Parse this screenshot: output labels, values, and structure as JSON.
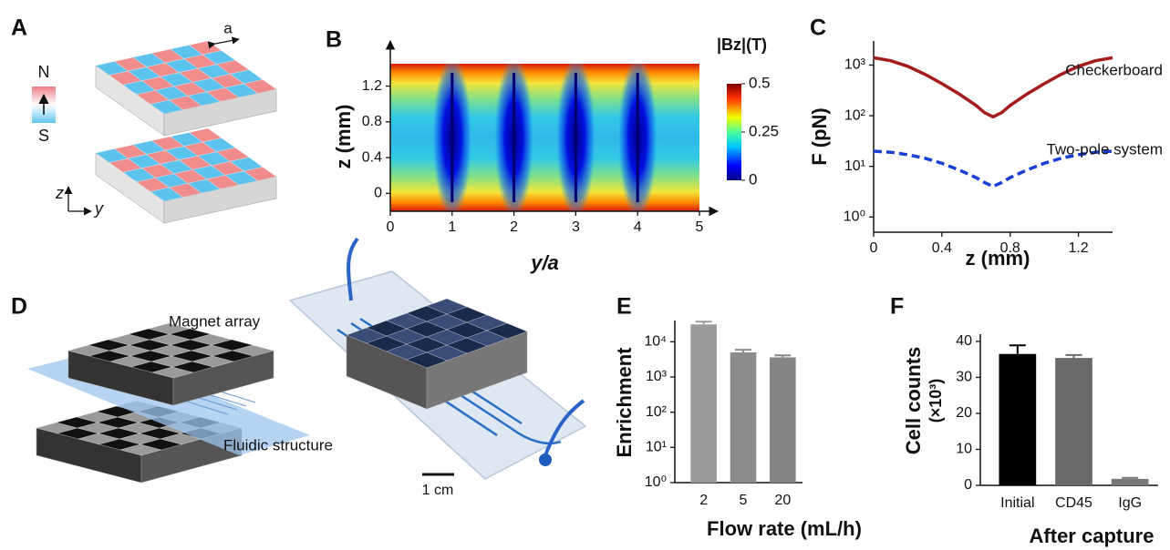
{
  "panel_labels": [
    "A",
    "B",
    "C",
    "D",
    "E",
    "F"
  ],
  "panel_a": {
    "spacing": "a",
    "north": "N",
    "south": "S",
    "z_axis": "z",
    "y_axis": "y"
  },
  "panel_d": {
    "magnet": "Magnet array",
    "fluidic": "Fluidic structure",
    "scale_bar": "1 cm"
  },
  "chart_data": [
    {
      "type": "heatmap",
      "xlabel": "y/a",
      "ylabel": "z (mm)",
      "xlim": [
        0,
        5
      ],
      "xticks": [
        0,
        1,
        2,
        3,
        4,
        5
      ],
      "ylim": [
        -0.2,
        1.45
      ],
      "yticks": [
        0,
        0.4,
        0.8,
        1.2
      ],
      "colorbar_title": "|Bz|(T)",
      "colorbar_lim": [
        0,
        0.5
      ],
      "colorbar_ticks": [
        0,
        0.25,
        0.5
      ]
    },
    {
      "type": "line",
      "xlabel": "z (mm)",
      "ylabel": "F (pN)",
      "log_y": true,
      "xlim": [
        0,
        1.4
      ],
      "xticks": [
        0,
        0.4,
        0.8,
        1.2
      ],
      "ylim": [
        0.5,
        3000
      ],
      "yticks": [
        {
          "value": 1,
          "label": "10⁰"
        },
        {
          "value": 10,
          "label": "10¹"
        },
        {
          "value": 100,
          "label": "10²"
        },
        {
          "value": 1000,
          "label": "10³"
        }
      ],
      "x": [
        0,
        0.1,
        0.2,
        0.3,
        0.4,
        0.5,
        0.6,
        0.65,
        0.7,
        0.75,
        0.8,
        0.9,
        1.0,
        1.1,
        1.2,
        1.3,
        1.4
      ],
      "series": [
        {
          "name": "Checkerboard",
          "color": "#a51c1c",
          "dashed": false,
          "values": [
            1400,
            1220,
            950,
            660,
            430,
            270,
            160,
            115,
            95,
            115,
            160,
            270,
            430,
            660,
            950,
            1220,
            1400
          ]
        },
        {
          "name": "Two-pole system",
          "color": "#1a3fd6",
          "dashed": true,
          "values": [
            20,
            19,
            17,
            14.5,
            11.5,
            8.5,
            6,
            4.8,
            4,
            4.8,
            6,
            8.5,
            11.5,
            14.5,
            17,
            19,
            20
          ]
        }
      ]
    },
    {
      "type": "bar",
      "xlabel": "Flow rate (mL/h)",
      "ylabel": "Enrichment",
      "log_y": true,
      "categories": [
        "2",
        "5",
        "20"
      ],
      "values": [
        31000,
        5000,
        3600
      ],
      "errors": [
        6000,
        900,
        500
      ],
      "colors": [
        "#9a9a9a",
        "#8c8c8c",
        "#858585"
      ],
      "ylim": [
        1,
        40000
      ],
      "yticks": [
        {
          "value": 1,
          "label": "10⁰"
        },
        {
          "value": 10,
          "label": "10¹"
        },
        {
          "value": 100,
          "label": "10²"
        },
        {
          "value": 1000,
          "label": "10³"
        },
        {
          "value": 10000,
          "label": "10⁴"
        }
      ]
    },
    {
      "type": "bar",
      "xlabel": "After capture",
      "ylabel": [
        "Cell counts",
        "(×10³)"
      ],
      "log_y": false,
      "categories": [
        "Initial",
        "CD45",
        "IgG"
      ],
      "values": [
        36.5,
        35.4,
        1.8
      ],
      "errors": [
        2.4,
        0.8,
        0.3
      ],
      "colors": [
        "#000000",
        "#6a6a6a",
        "#777777"
      ],
      "ylim": [
        0,
        42
      ],
      "yticks": [
        0,
        10,
        20,
        30,
        40
      ]
    }
  ]
}
